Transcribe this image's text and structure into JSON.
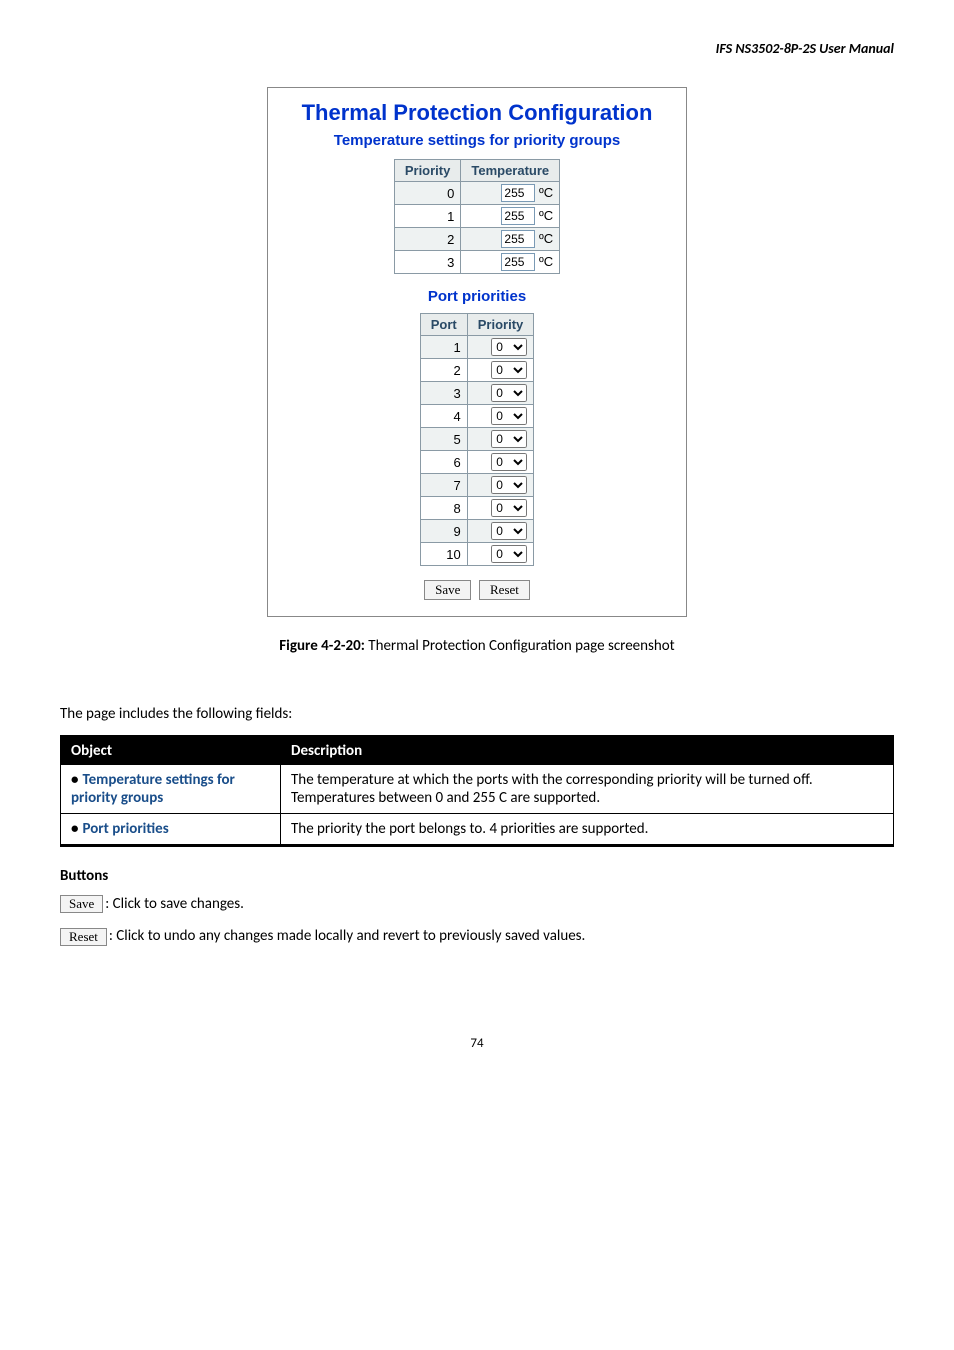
{
  "header": {
    "title": "IFS  NS3502-8P-2S  User  Manual"
  },
  "screenshot": {
    "title": "Thermal Protection Configuration",
    "subtitle": "Temperature settings for priority groups",
    "temp_table": {
      "headers": {
        "priority": "Priority",
        "temperature": "Temperature"
      },
      "unit": "ºC",
      "rows": [
        {
          "priority": "0",
          "value": "255"
        },
        {
          "priority": "1",
          "value": "255"
        },
        {
          "priority": "2",
          "value": "255"
        },
        {
          "priority": "3",
          "value": "255"
        }
      ]
    },
    "port_section_title": "Port priorities",
    "port_table": {
      "headers": {
        "port": "Port",
        "priority": "Priority"
      },
      "rows": [
        {
          "port": "1",
          "priority": "0"
        },
        {
          "port": "2",
          "priority": "0"
        },
        {
          "port": "3",
          "priority": "0"
        },
        {
          "port": "4",
          "priority": "0"
        },
        {
          "port": "5",
          "priority": "0"
        },
        {
          "port": "6",
          "priority": "0"
        },
        {
          "port": "7",
          "priority": "0"
        },
        {
          "port": "8",
          "priority": "0"
        },
        {
          "port": "9",
          "priority": "0"
        },
        {
          "port": "10",
          "priority": "0"
        }
      ]
    },
    "buttons": {
      "save": "Save",
      "reset": "Reset"
    }
  },
  "caption": {
    "label": "Figure 4-2-20:",
    "text": " Thermal Protection Configuration page screenshot"
  },
  "lead": "The page includes the following fields:",
  "field_table": {
    "headers": {
      "object": "Object",
      "description": "Description"
    },
    "rows": [
      {
        "object": "Temperature settings for priority groups",
        "description": "The temperature at which the ports with the corresponding priority will be turned off. Temperatures between 0 and 255 C are supported."
      },
      {
        "object": "Port priorities",
        "description": "The priority the port belongs to. 4 priorities are supported."
      }
    ]
  },
  "buttons_section": {
    "heading": "Buttons",
    "save_label": "Save",
    "save_text": ": Click to save changes.",
    "reset_label": "Reset",
    "reset_text": ": Click to undo any changes made locally and revert to previously saved values."
  },
  "page_number": "74"
}
